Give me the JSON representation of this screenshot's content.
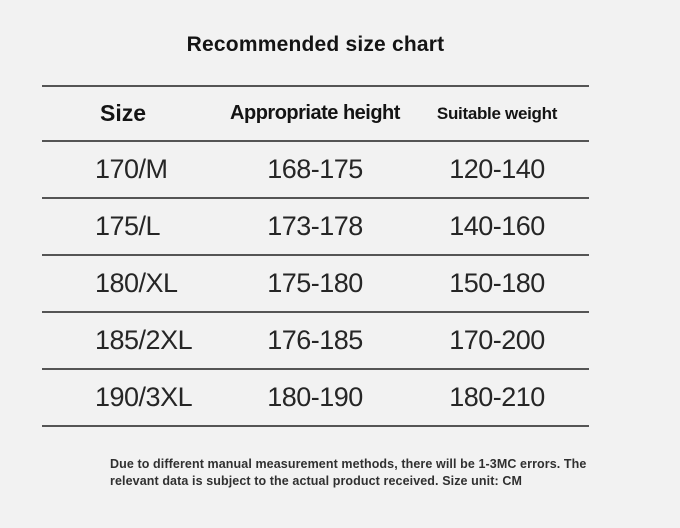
{
  "title": "Recommended size chart",
  "chart_data": {
    "type": "table",
    "title": "Recommended size chart",
    "columns": [
      "Size",
      "Appropriate height",
      "Suitable weight"
    ],
    "rows": [
      [
        "170/M",
        "168-175",
        "120-140"
      ],
      [
        "175/L",
        "173-178",
        "140-160"
      ],
      [
        "180/XL",
        "175-180",
        "150-180"
      ],
      [
        "185/2XL",
        "176-185",
        "170-200"
      ],
      [
        "190/3XL",
        "180-190",
        "180-210"
      ]
    ],
    "size_unit": "CM"
  },
  "footer": {
    "line1": "Due to different manual measurement methods, there will be 1-3MC errors. The",
    "line2": "relevant data is subject to the actual product received. Size unit: CM"
  },
  "colors": {
    "background": "#f2f2f2",
    "text": "#1d1d1d",
    "rule_line": "#555555",
    "note_text": "#303030"
  }
}
